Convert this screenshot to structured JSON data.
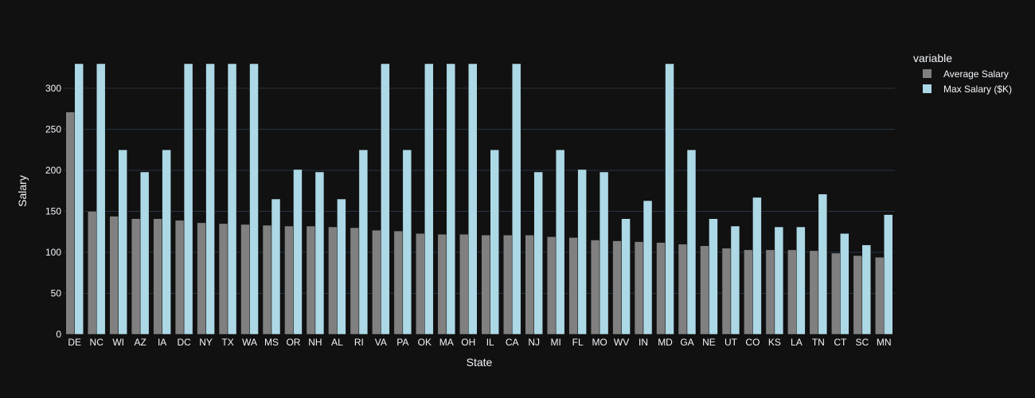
{
  "chart_data": {
    "type": "bar",
    "xlabel": "State",
    "ylabel": "Salary",
    "legend_title": "variable",
    "legend_position": "right",
    "ylim": [
      0,
      333
    ],
    "yticks": [
      0,
      50,
      100,
      150,
      200,
      250,
      300
    ],
    "grid": true,
    "categories": [
      "DE",
      "NC",
      "WI",
      "AZ",
      "IA",
      "DC",
      "NY",
      "TX",
      "WA",
      "MS",
      "OR",
      "NH",
      "AL",
      "RI",
      "VA",
      "PA",
      "OK",
      "MA",
      "OH",
      "IL",
      "CA",
      "NJ",
      "MI",
      "FL",
      "MO",
      "WV",
      "IN",
      "MD",
      "GA",
      "NE",
      "UT",
      "CO",
      "KS",
      "LA",
      "TN",
      "CT",
      "SC",
      "MN"
    ],
    "series": [
      {
        "name": "Average Salary",
        "color": "#808080",
        "values": [
          271,
          150,
          144,
          141,
          141,
          139,
          136,
          135,
          134,
          133,
          132,
          132,
          131,
          130,
          127,
          126,
          123,
          122,
          122,
          121,
          121,
          121,
          119,
          118,
          115,
          114,
          113,
          112,
          110,
          108,
          105,
          103,
          103,
          103,
          102,
          99,
          96,
          94
        ]
      },
      {
        "name": "Max Salary ($K)",
        "color": "#add8e6",
        "values": [
          330,
          330,
          225,
          198,
          225,
          330,
          330,
          330,
          330,
          165,
          201,
          198,
          165,
          225,
          330,
          225,
          330,
          330,
          330,
          225,
          330,
          198,
          225,
          201,
          198,
          141,
          163,
          330,
          225,
          141,
          132,
          167,
          131,
          131,
          171,
          123,
          109,
          146
        ]
      }
    ]
  }
}
